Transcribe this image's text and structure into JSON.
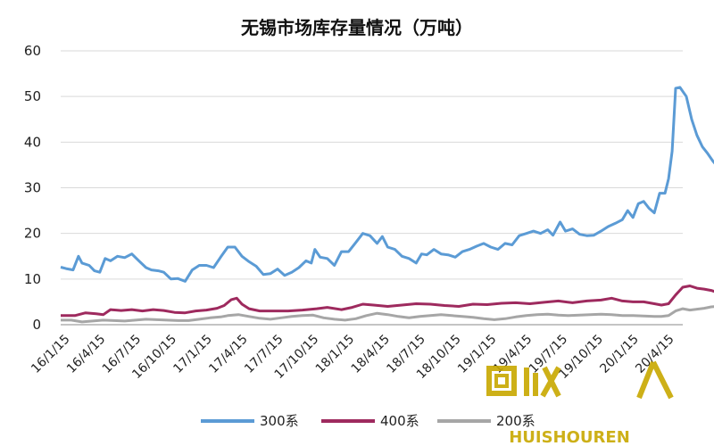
{
  "chart_data": {
    "type": "line",
    "title": "无锡市场库存量情况（万吨）",
    "xlabel": "",
    "ylabel": "",
    "ylim": [
      0,
      60
    ],
    "yticks": [
      0,
      10,
      20,
      30,
      40,
      50,
      60
    ],
    "x_labels": [
      "16/1/15",
      "16/4/15",
      "16/7/15",
      "16/10/15",
      "17/1/15",
      "17/4/15",
      "17/7/15",
      "17/10/15",
      "18/1/15",
      "18/4/15",
      "18/7/15",
      "18/10/15",
      "19/1/15",
      "19/4/15",
      "19/7/15",
      "19/10/15",
      "20/1/15",
      "20/4/15"
    ],
    "grid": "horizontal",
    "legend_position": "bottom",
    "colors": {
      "s300": "#5b9bd5",
      "s400": "#9e2a5e",
      "s200": "#a6a6a6"
    },
    "series": [
      {
        "name": "300系",
        "color": "#5b9bd5",
        "points": [
          [
            0,
            12.6
          ],
          [
            0.15,
            12.3
          ],
          [
            0.35,
            12.0
          ],
          [
            0.5,
            15.0
          ],
          [
            0.6,
            13.5
          ],
          [
            0.8,
            13.0
          ],
          [
            0.95,
            11.8
          ],
          [
            1.1,
            11.5
          ],
          [
            1.25,
            14.5
          ],
          [
            1.4,
            14.0
          ],
          [
            1.6,
            15.0
          ],
          [
            1.8,
            14.7
          ],
          [
            2.0,
            15.5
          ],
          [
            2.2,
            14.0
          ],
          [
            2.4,
            12.5
          ],
          [
            2.55,
            12.0
          ],
          [
            2.75,
            11.8
          ],
          [
            2.9,
            11.5
          ],
          [
            3.1,
            10.0
          ],
          [
            3.3,
            10.1
          ],
          [
            3.5,
            9.5
          ],
          [
            3.7,
            12.0
          ],
          [
            3.9,
            13.0
          ],
          [
            4.1,
            13.0
          ],
          [
            4.3,
            12.5
          ],
          [
            4.5,
            14.8
          ],
          [
            4.7,
            17.0
          ],
          [
            4.9,
            17.0
          ],
          [
            5.1,
            15.0
          ],
          [
            5.3,
            13.8
          ],
          [
            5.5,
            12.8
          ],
          [
            5.7,
            11.0
          ],
          [
            5.9,
            11.2
          ],
          [
            6.1,
            12.2
          ],
          [
            6.3,
            10.8
          ],
          [
            6.5,
            11.5
          ],
          [
            6.7,
            12.5
          ],
          [
            6.9,
            14.0
          ],
          [
            7.05,
            13.5
          ],
          [
            7.15,
            16.5
          ],
          [
            7.3,
            14.8
          ],
          [
            7.5,
            14.5
          ],
          [
            7.7,
            13.0
          ],
          [
            7.9,
            16.0
          ],
          [
            8.1,
            16.0
          ],
          [
            8.3,
            18.0
          ],
          [
            8.5,
            20.0
          ],
          [
            8.7,
            19.5
          ],
          [
            8.9,
            17.8
          ],
          [
            9.05,
            19.3
          ],
          [
            9.2,
            17.0
          ],
          [
            9.4,
            16.5
          ],
          [
            9.6,
            15.0
          ],
          [
            9.8,
            14.5
          ],
          [
            10.0,
            13.5
          ],
          [
            10.15,
            15.5
          ],
          [
            10.3,
            15.3
          ],
          [
            10.5,
            16.5
          ],
          [
            10.7,
            15.5
          ],
          [
            10.9,
            15.3
          ],
          [
            11.1,
            14.8
          ],
          [
            11.3,
            16.0
          ],
          [
            11.5,
            16.5
          ],
          [
            11.7,
            17.2
          ],
          [
            11.9,
            17.8
          ],
          [
            12.1,
            17.0
          ],
          [
            12.3,
            16.5
          ],
          [
            12.5,
            17.8
          ],
          [
            12.7,
            17.5
          ],
          [
            12.9,
            19.5
          ],
          [
            13.1,
            20.0
          ],
          [
            13.3,
            20.5
          ],
          [
            13.5,
            20.0
          ],
          [
            13.7,
            20.8
          ],
          [
            13.85,
            19.6
          ],
          [
            14.05,
            22.5
          ],
          [
            14.2,
            20.5
          ],
          [
            14.4,
            21.0
          ],
          [
            14.6,
            19.8
          ],
          [
            14.8,
            19.5
          ],
          [
            15.0,
            19.6
          ],
          [
            15.2,
            20.5
          ],
          [
            15.4,
            21.5
          ],
          [
            15.6,
            22.2
          ],
          [
            15.8,
            23.0
          ],
          [
            15.95,
            25.0
          ],
          [
            16.1,
            23.5
          ],
          [
            16.25,
            26.5
          ],
          [
            16.4,
            27.0
          ],
          [
            16.55,
            25.5
          ],
          [
            16.7,
            24.5
          ],
          [
            16.85,
            28.8
          ],
          [
            17.0,
            28.8
          ],
          [
            17.1,
            32.0
          ],
          [
            17.2,
            38.0
          ],
          [
            17.3,
            51.8
          ],
          [
            17.42,
            52.0
          ],
          [
            17.6,
            50.0
          ],
          [
            17.75,
            45.0
          ],
          [
            17.9,
            41.5
          ],
          [
            18.05,
            39.0
          ],
          [
            18.2,
            37.5
          ],
          [
            18.35,
            35.8
          ],
          [
            18.5,
            34.5
          ]
        ]
      },
      {
        "name": "400系",
        "color": "#9e2a5e",
        "points": [
          [
            0,
            2.0
          ],
          [
            0.4,
            2.0
          ],
          [
            0.7,
            2.6
          ],
          [
            1.0,
            2.4
          ],
          [
            1.2,
            2.2
          ],
          [
            1.4,
            3.3
          ],
          [
            1.7,
            3.1
          ],
          [
            2.0,
            3.3
          ],
          [
            2.3,
            3.0
          ],
          [
            2.6,
            3.3
          ],
          [
            2.9,
            3.1
          ],
          [
            3.2,
            2.7
          ],
          [
            3.5,
            2.6
          ],
          [
            3.8,
            3.0
          ],
          [
            4.1,
            3.2
          ],
          [
            4.4,
            3.6
          ],
          [
            4.6,
            4.2
          ],
          [
            4.8,
            5.5
          ],
          [
            4.95,
            5.8
          ],
          [
            5.1,
            4.5
          ],
          [
            5.3,
            3.5
          ],
          [
            5.6,
            3.0
          ],
          [
            6.0,
            3.0
          ],
          [
            6.4,
            3.0
          ],
          [
            6.8,
            3.2
          ],
          [
            7.2,
            3.5
          ],
          [
            7.5,
            3.8
          ],
          [
            7.9,
            3.3
          ],
          [
            8.2,
            3.8
          ],
          [
            8.5,
            4.5
          ],
          [
            8.8,
            4.3
          ],
          [
            9.2,
            4.0
          ],
          [
            9.6,
            4.3
          ],
          [
            10.0,
            4.6
          ],
          [
            10.4,
            4.5
          ],
          [
            10.8,
            4.2
          ],
          [
            11.2,
            4.0
          ],
          [
            11.6,
            4.5
          ],
          [
            12.0,
            4.4
          ],
          [
            12.4,
            4.7
          ],
          [
            12.8,
            4.8
          ],
          [
            13.2,
            4.6
          ],
          [
            13.6,
            4.9
          ],
          [
            14.0,
            5.2
          ],
          [
            14.4,
            4.8
          ],
          [
            14.8,
            5.2
          ],
          [
            15.2,
            5.4
          ],
          [
            15.5,
            5.8
          ],
          [
            15.8,
            5.2
          ],
          [
            16.1,
            5.0
          ],
          [
            16.4,
            5.0
          ],
          [
            16.7,
            4.6
          ],
          [
            16.9,
            4.3
          ],
          [
            17.1,
            4.6
          ],
          [
            17.3,
            6.5
          ],
          [
            17.5,
            8.2
          ],
          [
            17.7,
            8.5
          ],
          [
            17.9,
            8.0
          ],
          [
            18.1,
            7.8
          ],
          [
            18.3,
            7.5
          ],
          [
            18.5,
            7.0
          ]
        ]
      },
      {
        "name": "200系",
        "color": "#a6a6a6",
        "points": [
          [
            0,
            1.0
          ],
          [
            0.3,
            1.0
          ],
          [
            0.6,
            0.6
          ],
          [
            0.9,
            0.8
          ],
          [
            1.2,
            1.0
          ],
          [
            1.5,
            0.9
          ],
          [
            1.8,
            0.8
          ],
          [
            2.1,
            1.0
          ],
          [
            2.4,
            1.2
          ],
          [
            2.7,
            1.1
          ],
          [
            3.0,
            1.0
          ],
          [
            3.3,
            0.9
          ],
          [
            3.6,
            0.9
          ],
          [
            3.9,
            1.2
          ],
          [
            4.2,
            1.5
          ],
          [
            4.5,
            1.7
          ],
          [
            4.7,
            2.0
          ],
          [
            5.0,
            2.2
          ],
          [
            5.3,
            1.8
          ],
          [
            5.6,
            1.4
          ],
          [
            5.9,
            1.2
          ],
          [
            6.2,
            1.5
          ],
          [
            6.5,
            1.8
          ],
          [
            6.8,
            2.0
          ],
          [
            7.1,
            2.1
          ],
          [
            7.4,
            1.5
          ],
          [
            7.7,
            1.2
          ],
          [
            8.0,
            1.0
          ],
          [
            8.3,
            1.3
          ],
          [
            8.6,
            2.0
          ],
          [
            8.9,
            2.5
          ],
          [
            9.2,
            2.2
          ],
          [
            9.5,
            1.8
          ],
          [
            9.8,
            1.5
          ],
          [
            10.1,
            1.8
          ],
          [
            10.4,
            2.0
          ],
          [
            10.7,
            2.2
          ],
          [
            11.0,
            2.0
          ],
          [
            11.3,
            1.8
          ],
          [
            11.6,
            1.6
          ],
          [
            11.9,
            1.3
          ],
          [
            12.2,
            1.1
          ],
          [
            12.5,
            1.3
          ],
          [
            12.8,
            1.7
          ],
          [
            13.1,
            2.0
          ],
          [
            13.4,
            2.2
          ],
          [
            13.7,
            2.3
          ],
          [
            14.0,
            2.1
          ],
          [
            14.3,
            2.0
          ],
          [
            14.6,
            2.1
          ],
          [
            14.9,
            2.2
          ],
          [
            15.2,
            2.3
          ],
          [
            15.5,
            2.2
          ],
          [
            15.8,
            2.0
          ],
          [
            16.1,
            2.0
          ],
          [
            16.4,
            1.9
          ],
          [
            16.7,
            1.8
          ],
          [
            16.9,
            1.8
          ],
          [
            17.1,
            2.0
          ],
          [
            17.3,
            3.0
          ],
          [
            17.5,
            3.5
          ],
          [
            17.7,
            3.2
          ],
          [
            17.9,
            3.4
          ],
          [
            18.1,
            3.6
          ],
          [
            18.3,
            3.9
          ],
          [
            18.5,
            4.0
          ]
        ]
      }
    ]
  },
  "watermark": {
    "logo_text": "回收",
    "brand_text": "HUISHOUREN"
  }
}
